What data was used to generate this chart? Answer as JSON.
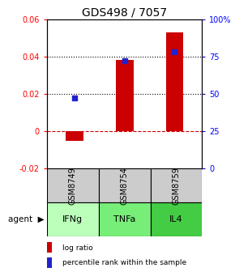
{
  "title": "GDS498 / 7057",
  "samples": [
    "GSM8749",
    "GSM8754",
    "GSM8759"
  ],
  "agents": [
    "IFNg",
    "TNFa",
    "IL4"
  ],
  "log_ratios": [
    -0.005,
    0.038,
    0.053
  ],
  "percentile_ranks": [
    47,
    72,
    78
  ],
  "ylim_left": [
    -0.02,
    0.06
  ],
  "ylim_right": [
    0,
    100
  ],
  "yticks_left": [
    -0.02,
    0.0,
    0.02,
    0.04,
    0.06
  ],
  "yticks_right": [
    0,
    25,
    50,
    75,
    100
  ],
  "ytick_labels_left": [
    "-0.02",
    "0",
    "0.02",
    "0.04",
    "0.06"
  ],
  "ytick_labels_right": [
    "0",
    "25",
    "50",
    "75",
    "100%"
  ],
  "bar_color": "#cc0000",
  "dot_color": "#2222cc",
  "gridline_color": "#000000",
  "zeroline_color": "#cc0000",
  "sample_bg_color": "#cccccc",
  "agent_colors": [
    "#bbffbb",
    "#77ee77",
    "#44cc44"
  ],
  "bar_width": 0.35,
  "dot_size": 22,
  "title_fontsize": 10,
  "tick_fontsize": 7,
  "label_fontsize": 7.5,
  "legend_fontsize": 6.5,
  "agent_fontsize": 8,
  "sample_fontsize": 7
}
